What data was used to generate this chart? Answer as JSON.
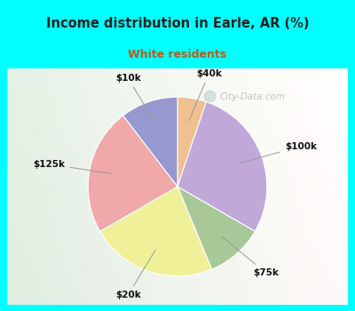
{
  "title": "Income distribution in Earle, AR (%)",
  "subtitle": "White residents",
  "title_color": "#222222",
  "subtitle_color": "#b06020",
  "background_outer": "#00ffff",
  "labels": [
    "$40k",
    "$100k",
    "$75k",
    "$20k",
    "$125k",
    "$10k"
  ],
  "sizes": [
    5,
    27,
    10,
    22,
    22,
    10
  ],
  "colors": [
    "#f0c090",
    "#c0a8d8",
    "#a8c898",
    "#f0f098",
    "#f0a8a8",
    "#9898d0"
  ],
  "label_color": "#111111",
  "startangle": 90,
  "watermark": "City-Data.com"
}
